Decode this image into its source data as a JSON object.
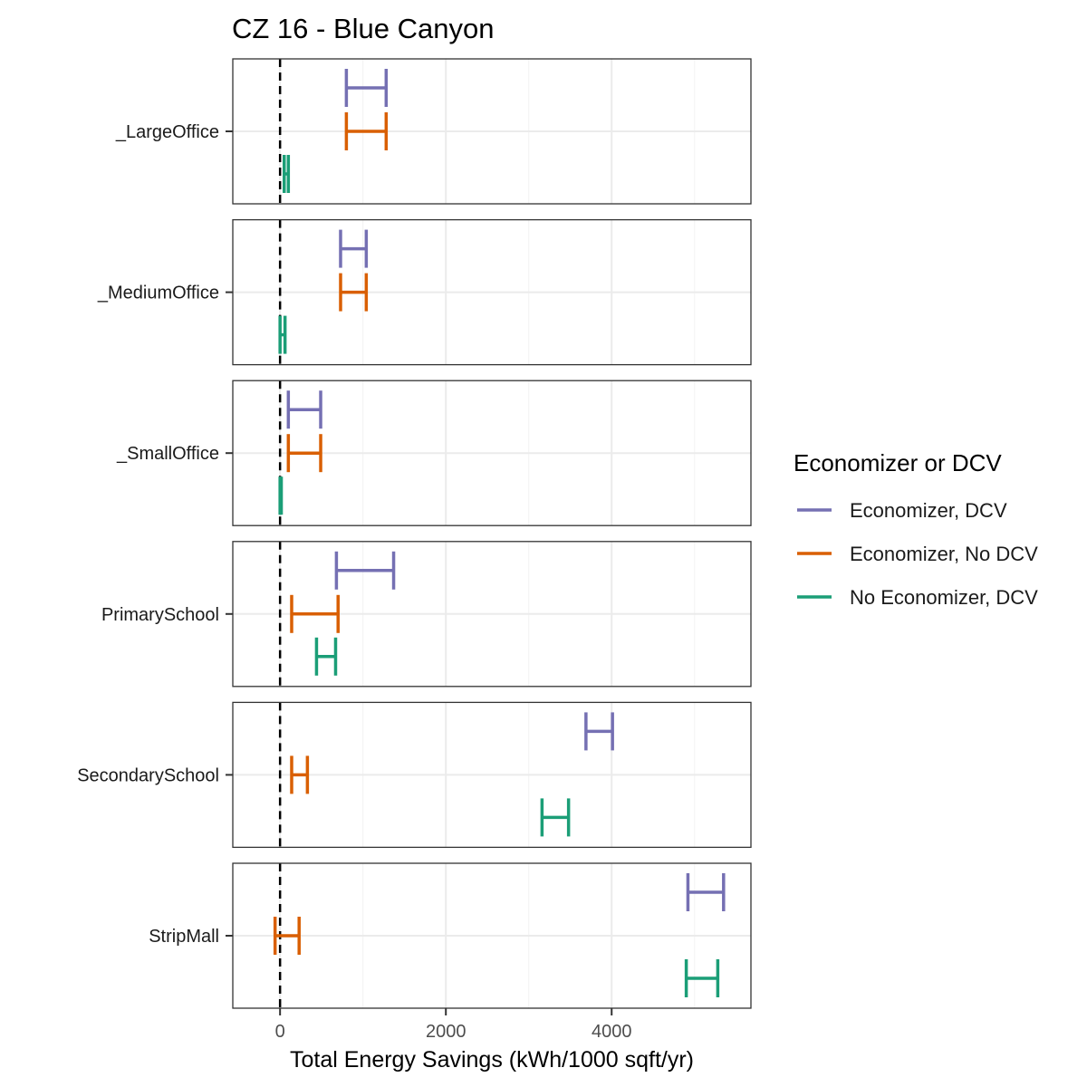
{
  "chart_data": {
    "type": "errorbar",
    "title": "CZ 16 - Blue Canyon",
    "xlabel": "Total Energy Savings (kWh/1000 sqft/yr)",
    "ylabel": "",
    "xlim": [
      -570,
      5680
    ],
    "x_ticks": [
      0,
      2000,
      4000
    ],
    "x_tick_labels": [
      "0",
      "2000",
      "4000"
    ],
    "reference_line": {
      "x": 0,
      "style": "dashed"
    },
    "grid": true,
    "legend": {
      "title": "Economizer or DCV",
      "placement": "right",
      "entries": [
        "Economizer, DCV",
        "Economizer, No DCV",
        "No Economizer, DCV"
      ]
    },
    "series": [
      {
        "name": "Economizer, DCV",
        "color": "#7570b3"
      },
      {
        "name": "Economizer, No DCV",
        "color": "#d95f02"
      },
      {
        "name": "No Economizer, DCV",
        "color": "#1b9e77"
      }
    ],
    "panels": [
      {
        "label": "_LargeOffice",
        "ranges": [
          [
            800,
            1280
          ],
          [
            800,
            1280
          ],
          [
            50,
            100
          ]
        ]
      },
      {
        "label": "_MediumOffice",
        "ranges": [
          [
            730,
            1040
          ],
          [
            730,
            1040
          ],
          [
            0,
            60
          ]
        ]
      },
      {
        "label": "_SmallOffice",
        "ranges": [
          [
            100,
            490
          ],
          [
            100,
            490
          ],
          [
            0,
            15
          ]
        ]
      },
      {
        "label": "PrimarySchool",
        "ranges": [
          [
            680,
            1370
          ],
          [
            140,
            700
          ],
          [
            440,
            670
          ]
        ]
      },
      {
        "label": "SecondarySchool",
        "ranges": [
          [
            3690,
            4010
          ],
          [
            140,
            330
          ],
          [
            3160,
            3480
          ]
        ]
      },
      {
        "label": "StripMall",
        "ranges": [
          [
            4920,
            5350
          ],
          [
            -60,
            230
          ],
          [
            4900,
            5280
          ]
        ]
      }
    ]
  }
}
